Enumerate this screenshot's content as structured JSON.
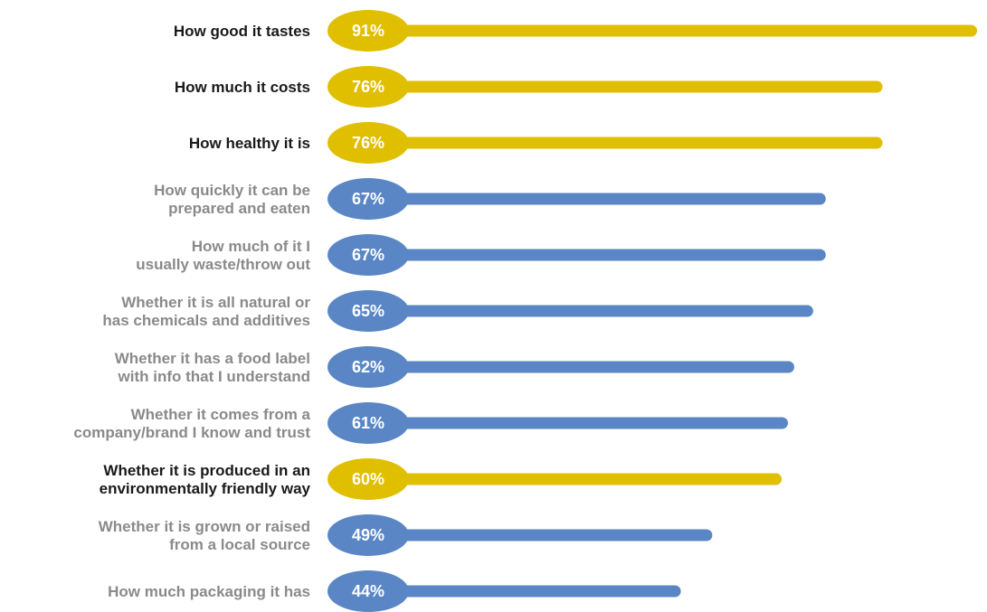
{
  "chart_data": {
    "type": "bar",
    "orientation": "horizontal",
    "xlim": [
      0,
      100
    ],
    "value_suffix": "%",
    "grid": false,
    "legend": "none",
    "colors": {
      "highlight_bar": "#E0BE00",
      "normal_bar": "#5A86C6",
      "highlight_label": "#1a1a1a",
      "normal_label": "#8a8a8a"
    },
    "bars": [
      {
        "label": [
          "How good it tastes"
        ],
        "value": 91,
        "highlight": true
      },
      {
        "label": [
          "How much it costs"
        ],
        "value": 76,
        "highlight": true
      },
      {
        "label": [
          "How healthy it is"
        ],
        "value": 76,
        "highlight": true
      },
      {
        "label": [
          "How quickly it can be",
          "prepared and eaten"
        ],
        "value": 67,
        "highlight": false
      },
      {
        "label": [
          "How much of it I",
          "usually waste/throw out"
        ],
        "value": 67,
        "highlight": false
      },
      {
        "label": [
          "Whether it is all natural or",
          "has chemicals and additives"
        ],
        "value": 65,
        "highlight": false
      },
      {
        "label": [
          "Whether it has a food label",
          "with info that I understand"
        ],
        "value": 62,
        "highlight": false
      },
      {
        "label": [
          "Whether it comes from a",
          "company/brand I know and trust"
        ],
        "value": 61,
        "highlight": false
      },
      {
        "label": [
          "Whether it is produced in an",
          "environmentally friendly way"
        ],
        "value": 60,
        "highlight": true
      },
      {
        "label": [
          "Whether it is grown or raised",
          "from a local source"
        ],
        "value": 49,
        "highlight": false
      },
      {
        "label": [
          "How much packaging it has"
        ],
        "value": 44,
        "highlight": false
      }
    ]
  }
}
